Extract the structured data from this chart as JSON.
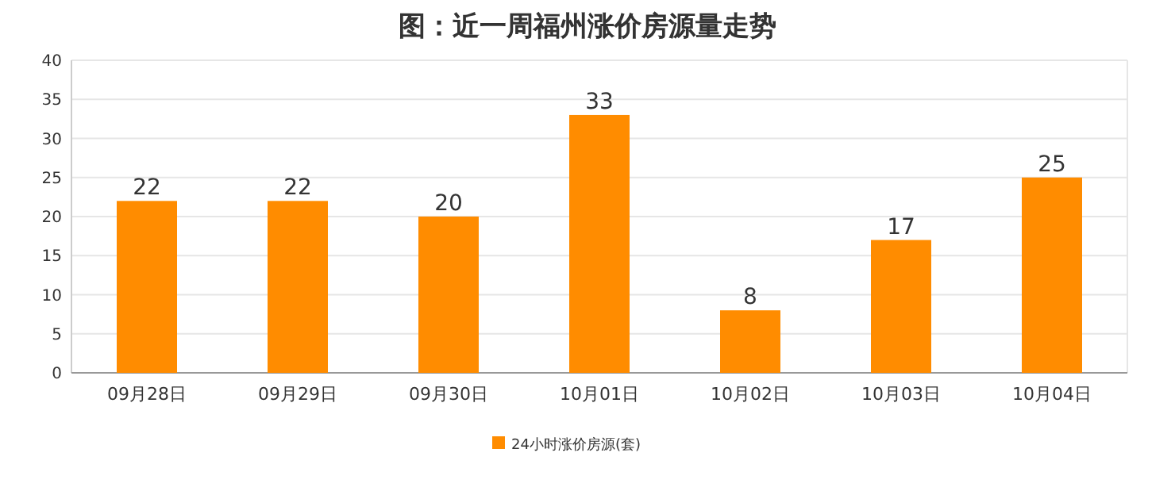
{
  "chart_data": {
    "type": "bar",
    "title": "图：近一周福州涨价房源量走势",
    "categories": [
      "09月28日",
      "09月29日",
      "09月30日",
      "10月01日",
      "10月02日",
      "10月03日",
      "10月04日"
    ],
    "series": [
      {
        "name": "24小时涨价房源(套)",
        "color": "#ff8c00",
        "values": [
          22,
          22,
          20,
          33,
          8,
          17,
          25
        ]
      }
    ],
    "ylim": [
      0,
      40
    ],
    "yticks": [
      0,
      5,
      10,
      15,
      20,
      25,
      30,
      35,
      40
    ],
    "grid": "y",
    "data_labels": true,
    "legend": "bottom"
  }
}
